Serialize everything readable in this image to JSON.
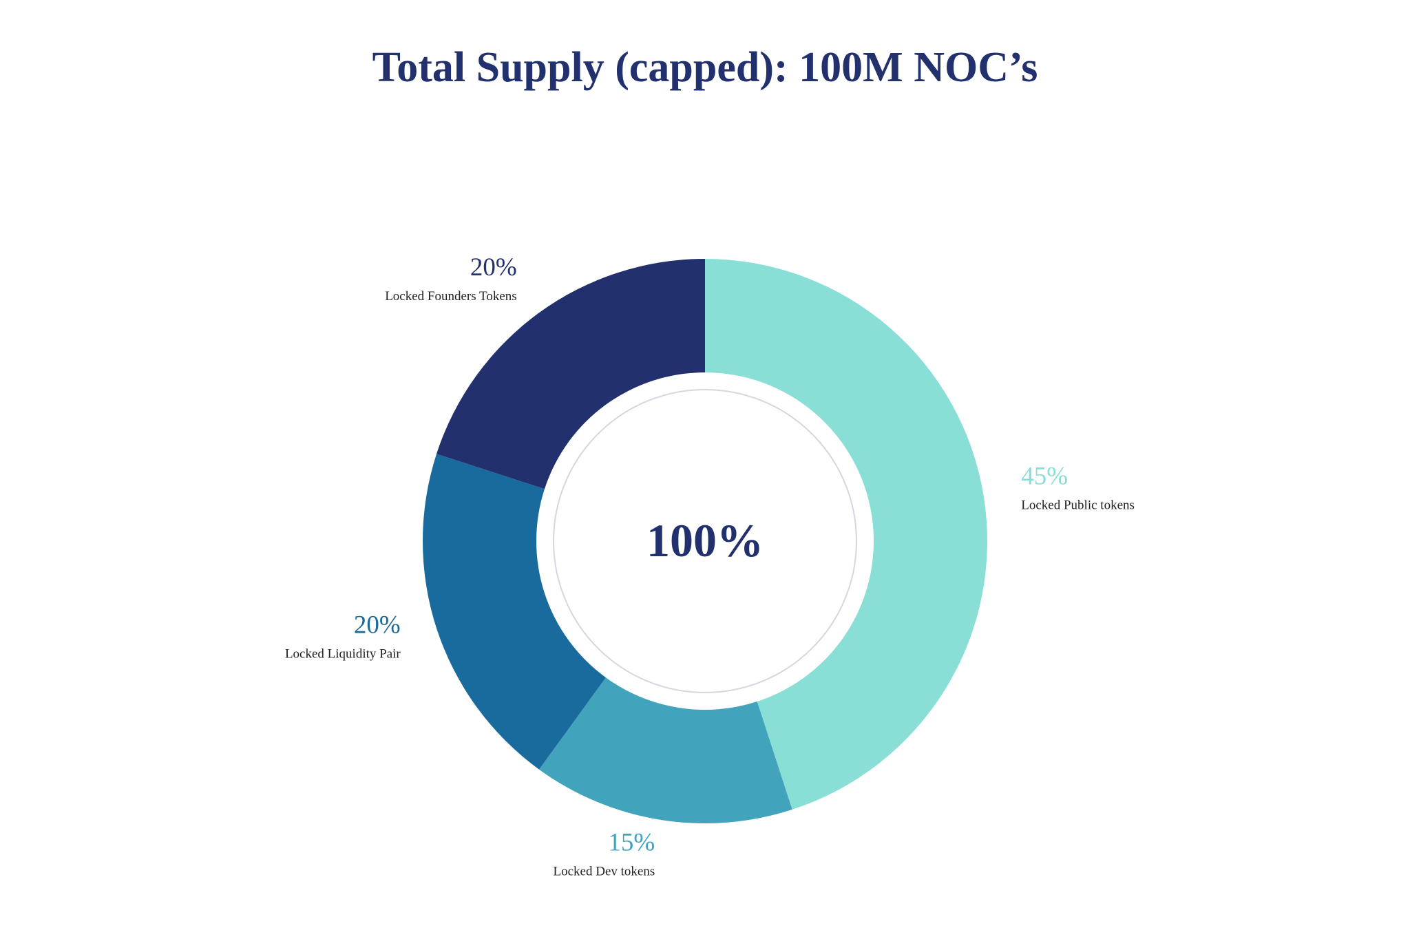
{
  "chart_data": {
    "type": "pie",
    "title": "Total Supply (capped): 100M NOC’s",
    "center_label": "100%",
    "unit": "%",
    "slices": [
      {
        "name": "Locked Public tokens",
        "value": 45,
        "label": "45%",
        "color": "#89ded6",
        "label_side": "right"
      },
      {
        "name": "Locked Dev tokens",
        "value": 15,
        "label": "15%",
        "color": "#41a4bc",
        "label_side": "left"
      },
      {
        "name": "Locked Liquidity Pair",
        "value": 20,
        "label": "20%",
        "color": "#186b9c",
        "label_side": "left"
      },
      {
        "name": "Locked Founders Tokens",
        "value": 20,
        "label": "20%",
        "color": "#22316d",
        "label_side": "left"
      }
    ],
    "colors": {
      "title": "#22316d",
      "center_text": "#22316d",
      "category_label": "#222222",
      "inner_ring": "#d6d6e0"
    }
  }
}
